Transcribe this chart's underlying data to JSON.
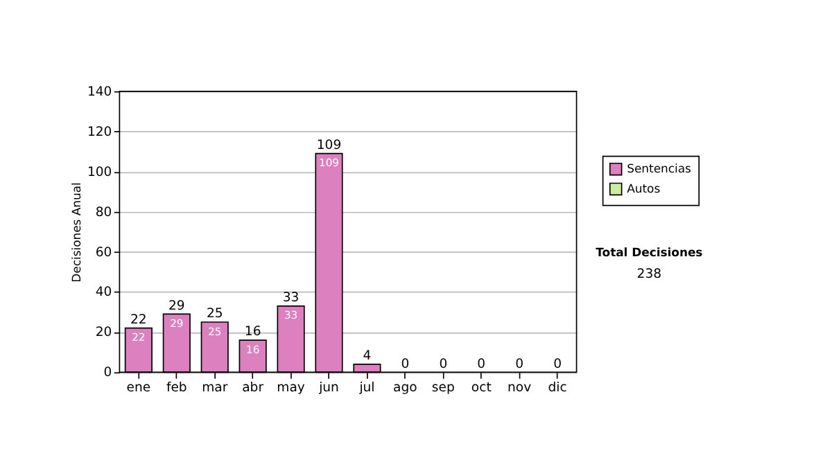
{
  "chart_data": {
    "type": "bar",
    "stacked": true,
    "ylabel": "Decisiones Anual",
    "categories": [
      "ene",
      "feb",
      "mar",
      "abr",
      "may",
      "jun",
      "jul",
      "ago",
      "sep",
      "oct",
      "nov",
      "dic"
    ],
    "series": [
      {
        "name": "Sentencias",
        "color": "#dd80c0",
        "values": [
          22,
          29,
          25,
          16,
          33,
          109,
          4,
          0,
          0,
          0,
          0,
          0
        ],
        "value_labels": [
          "22",
          "29",
          "25",
          "16",
          "33",
          "109",
          null,
          null,
          null,
          null,
          null,
          null
        ]
      },
      {
        "name": "Autos",
        "color": "#cceea0",
        "values": [
          0,
          0,
          0,
          0,
          0,
          0,
          0,
          0,
          0,
          0,
          0,
          0
        ]
      }
    ],
    "totals": [
      "22",
      "29",
      "25",
      "16",
      "33",
      "109",
      "4",
      "0",
      "0",
      "0",
      "0",
      "0"
    ],
    "ylim": [
      0,
      140
    ],
    "yticks": [
      0,
      20,
      40,
      60,
      80,
      100,
      120,
      140
    ],
    "grid": "y",
    "legend": "right",
    "annotations": [
      "Total Decisiones",
      "238"
    ]
  }
}
